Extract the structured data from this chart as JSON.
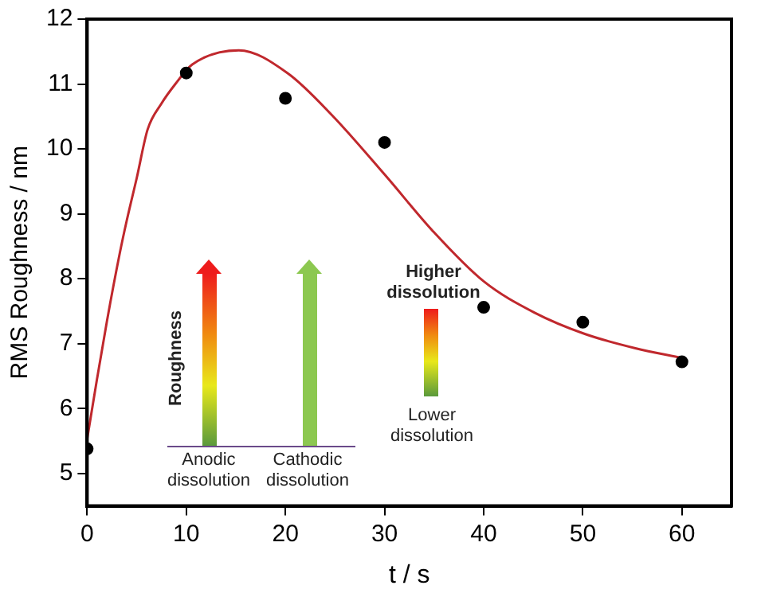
{
  "chart_data": {
    "type": "scatter",
    "xlabel": "t / s",
    "ylabel": "RMS Roughness / nm",
    "xlim": [
      0,
      65
    ],
    "xticks": [
      0,
      10,
      20,
      30,
      40,
      50,
      60
    ],
    "ylim": [
      4.5,
      12
    ],
    "yticks": [
      5,
      6,
      7,
      8,
      9,
      10,
      11,
      12
    ],
    "grid": false,
    "legend": false,
    "series": [
      {
        "color": "#000000",
        "marker": "circle",
        "x": [
          0,
          10,
          20,
          30,
          40,
          50,
          60
        ],
        "values": [
          5.38,
          11.17,
          10.78,
          10.1,
          7.56,
          7.33,
          6.72
        ]
      },
      {
        "type": "line",
        "color": "#c0282d",
        "marker": "none",
        "line_style": "solid",
        "x": [
          0,
          1,
          2,
          3.3,
          4,
          5,
          6.1,
          7.5,
          8.9,
          10.6,
          15.3,
          20.2,
          24.7,
          30.1,
          34.9,
          40,
          45.1,
          50.2,
          55.3,
          60
        ],
        "values": [
          5.53,
          6.46,
          7.35,
          8.4,
          8.9,
          9.55,
          10.3,
          10.7,
          11.0,
          11.3,
          11.52,
          11.17,
          10.52,
          9.59,
          8.73,
          7.96,
          7.48,
          7.15,
          6.93,
          6.78
        ]
      }
    ],
    "annotations": [
      "Roughness",
      "Anodic dissolution",
      "Cathodic dissolution",
      "Higher dissolution",
      "Lower dissolution"
    ]
  }
}
